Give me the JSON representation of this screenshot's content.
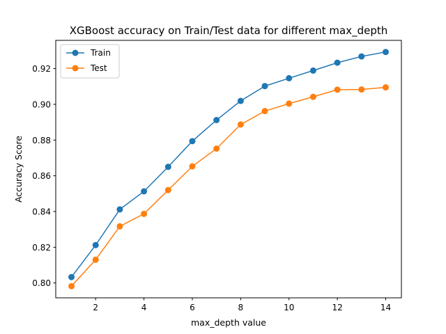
{
  "chart_data": {
    "type": "line",
    "title": "XGBoost accuracy on Train/Test data for different max_depth",
    "xlabel": "max_depth value",
    "ylabel": "Accuracy Score",
    "x": [
      1,
      2,
      3,
      4,
      5,
      6,
      7,
      8,
      9,
      10,
      11,
      12,
      13,
      14
    ],
    "xlim": [
      0.35,
      14.65
    ],
    "ylim": [
      0.7917,
      0.9358
    ],
    "xticks": [
      2,
      4,
      6,
      8,
      10,
      12,
      14
    ],
    "yticks": [
      0.8,
      0.82,
      0.84,
      0.86,
      0.88,
      0.9,
      0.92
    ],
    "xtick_labels": [
      "2",
      "4",
      "6",
      "8",
      "10",
      "12",
      "14"
    ],
    "ytick_labels": [
      "0.80",
      "0.82",
      "0.84",
      "0.86",
      "0.88",
      "0.90",
      "0.92"
    ],
    "grid": false,
    "legend_position": "upper left",
    "series": [
      {
        "name": "Train",
        "color": "#1f77b4",
        "marker": "circle",
        "values": [
          0.8033,
          0.8212,
          0.8412,
          0.8513,
          0.865,
          0.8794,
          0.8912,
          0.9019,
          0.9102,
          0.9146,
          0.9189,
          0.9233,
          0.9268,
          0.9293
        ]
      },
      {
        "name": "Test",
        "color": "#ff7f0e",
        "marker": "circle",
        "values": [
          0.7982,
          0.813,
          0.8317,
          0.8387,
          0.852,
          0.8653,
          0.8752,
          0.8887,
          0.8962,
          0.9004,
          0.9042,
          0.9082,
          0.9083,
          0.9095
        ]
      }
    ]
  }
}
